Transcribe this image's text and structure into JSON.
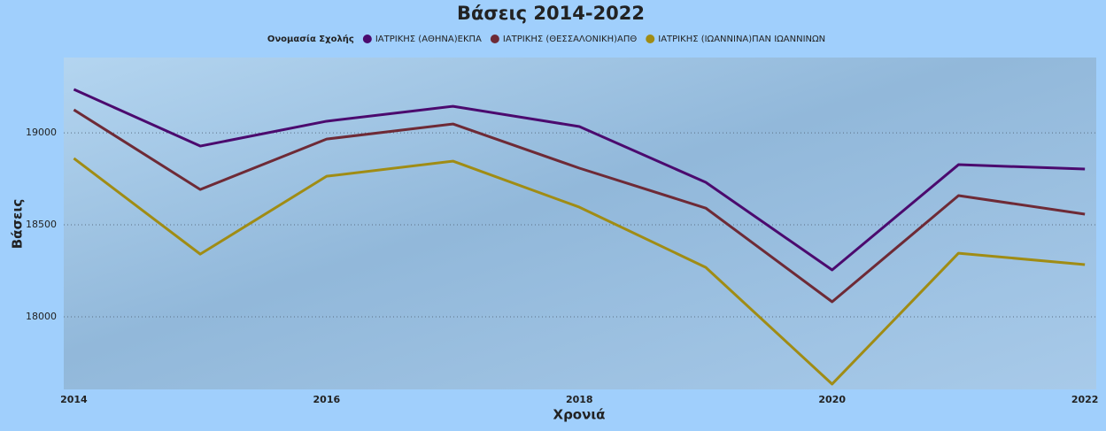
{
  "chart_data": {
    "type": "line",
    "title": "Βάσεις 2014-2022",
    "legend_title": "Ονομασία Σχολής",
    "x_label": "Χρονιά",
    "y_label": "Βάσεις",
    "x": [
      2014,
      2015,
      2016,
      2017,
      2018,
      2019,
      2020,
      2021,
      2022
    ],
    "xlim": [
      2013.92,
      2022.09
    ],
    "xticks": [
      2014,
      2016,
      2018,
      2020,
      2022
    ],
    "ylim": [
      17606,
      19409
    ],
    "yticks": [
      18000,
      18500,
      19000
    ],
    "grid": true,
    "legend": "top",
    "series": [
      {
        "name": "ΙΑΤΡΙΚΗΣ (ΑΘΗΝΑ)ΕΚΠΑ",
        "color": "#4b0a6e",
        "values": [
          19236,
          18928,
          19063,
          19144,
          19034,
          18731,
          18255,
          18827,
          18803
        ]
      },
      {
        "name": "ΙΑΤΡΙΚΗΣ (ΘΕΣΣΑΛΟΝΙΚΗ)ΑΠΘ",
        "color": "#6e2a36",
        "values": [
          19125,
          18692,
          18966,
          19048,
          18808,
          18591,
          18082,
          18659,
          18558
        ]
      },
      {
        "name": "ΙΑΤΡΙΚΗΣ (ΙΩΑΝΝΙΝΑ)ΠΑΝ ΙΩΑΝΝΙΝΩΝ",
        "color": "#a08c14",
        "values": [
          18861,
          18341,
          18764,
          18846,
          18596,
          18269,
          17635,
          18346,
          18284
        ]
      }
    ]
  }
}
